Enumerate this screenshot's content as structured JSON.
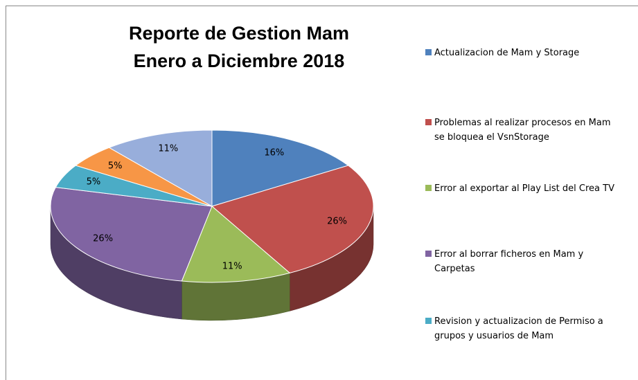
{
  "chart_data": {
    "type": "pie3d",
    "title": [
      "Reporte de Gestion Mam",
      "Enero a Diciembre 2018"
    ],
    "categories": [
      "Actualizacion de Mam y Storage",
      "Problemas al realizar procesos en Mam se bloquea el VsnStorage",
      "Error al exportar al Play List del Crea TV",
      "Error al borrar ficheros en Mam y Carpetas",
      "Revision y actualizacion de Permiso a grupos y usuarios de Mam",
      null,
      null
    ],
    "values": [
      16,
      26,
      11,
      26,
      5,
      5,
      11
    ],
    "value_labels": [
      "16%",
      "26%",
      "11%",
      "26%",
      "5%",
      "5%",
      "11%"
    ],
    "colors": [
      "#4f81bd",
      "#c0504d",
      "#9bbb59",
      "#8064a2",
      "#4bacc6",
      "#f79646",
      "#98aedb"
    ],
    "legend": "right"
  }
}
